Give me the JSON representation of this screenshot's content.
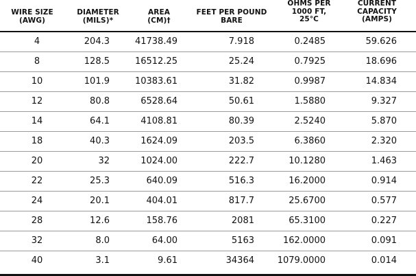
{
  "headers": {
    "wire_size": [
      "WIRE SIZE",
      "(AWG)"
    ],
    "diameter": [
      "DIAMETER",
      "(MILS)*"
    ],
    "area": [
      "AREA",
      "(CM)†"
    ],
    "feet_per_pound": [
      "FEET PER POUND",
      "BARE"
    ],
    "ohms": [
      "OHMS PER",
      "1000 FT,",
      "25°C"
    ],
    "current": [
      "CURRENT",
      "CAPACITY",
      "(AMPS)"
    ]
  },
  "rows": [
    {
      "awg": "4",
      "diameter": "204.3",
      "area": "41738.49",
      "feet": "7.918",
      "ohms": "0.2485",
      "amps": "59.626"
    },
    {
      "awg": "8",
      "diameter": "128.5",
      "area": "16512.25",
      "feet": "25.24",
      "ohms": "0.7925",
      "amps": "18.696"
    },
    {
      "awg": "10",
      "diameter": "101.9",
      "area": "10383.61",
      "feet": "31.82",
      "ohms": "0.9987",
      "amps": "14.834"
    },
    {
      "awg": "12",
      "diameter": "80.8",
      "area": "6528.64",
      "feet": "50.61",
      "ohms": "1.5880",
      "amps": "9.327"
    },
    {
      "awg": "14",
      "diameter": "64.1",
      "area": "4108.81",
      "feet": "80.39",
      "ohms": "2.5240",
      "amps": "5.870"
    },
    {
      "awg": "18",
      "diameter": "40.3",
      "area": "1624.09",
      "feet": "203.5",
      "ohms": "6.3860",
      "amps": "2.320"
    },
    {
      "awg": "20",
      "diameter": "32",
      "area": "1024.00",
      "feet": "222.7",
      "ohms": "10.1280",
      "amps": "1.463"
    },
    {
      "awg": "22",
      "diameter": "25.3",
      "area": "640.09",
      "feet": "516.3",
      "ohms": "16.2000",
      "amps": "0.914"
    },
    {
      "awg": "24",
      "diameter": "20.1",
      "area": "404.01",
      "feet": "817.7",
      "ohms": "25.6700",
      "amps": "0.577"
    },
    {
      "awg": "28",
      "diameter": "12.6",
      "area": "158.76",
      "feet": "2081",
      "ohms": "65.3100",
      "amps": "0.227"
    },
    {
      "awg": "32",
      "diameter": "8.0",
      "area": "64.00",
      "feet": "5163",
      "ohms": "162.0000",
      "amps": "0.091"
    },
    {
      "awg": "40",
      "diameter": "3.1",
      "area": "9.61",
      "feet": "34364",
      "ohms": "1079.0000",
      "amps": "0.014"
    }
  ]
}
